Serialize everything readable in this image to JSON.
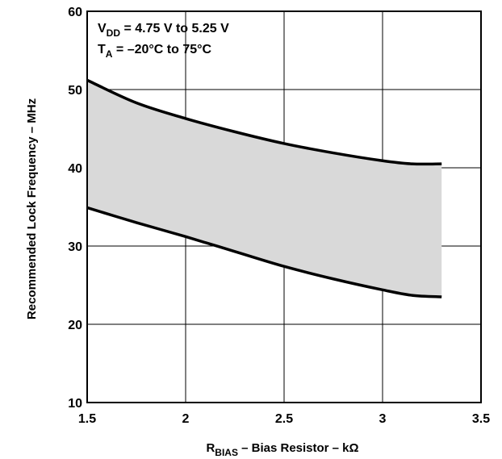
{
  "chart_data": {
    "type": "area",
    "title": "",
    "xlabel": {
      "main": "R",
      "sub": "BIAS",
      "rest": " – Bias Resistor – kΩ"
    },
    "ylabel": "Recommended Lock Frequency – MHz",
    "xlim": [
      1.5,
      3.5
    ],
    "ylim": [
      10,
      60
    ],
    "xticks": [
      1.5,
      2,
      2.5,
      3,
      3.5
    ],
    "yticks": [
      10,
      20,
      30,
      40,
      50,
      60
    ],
    "xtick_labels": [
      "1.5",
      "2",
      "2.5",
      "3",
      "3.5"
    ],
    "ytick_labels": [
      "10",
      "20",
      "30",
      "40",
      "50",
      "60"
    ],
    "grid": true,
    "band_fill": "#d9d9d9",
    "line_color": "#000000",
    "series": [
      {
        "role": "upper",
        "x": [
          1.5,
          1.75,
          2.0,
          2.25,
          2.5,
          2.75,
          3.0,
          3.15,
          3.3
        ],
        "y": [
          51.2,
          48.3,
          46.3,
          44.6,
          43.1,
          41.9,
          40.9,
          40.5,
          40.5
        ]
      },
      {
        "role": "lower",
        "x": [
          1.5,
          1.75,
          2.0,
          2.25,
          2.5,
          2.75,
          3.0,
          3.15,
          3.3
        ],
        "y": [
          34.9,
          33.0,
          31.2,
          29.3,
          27.4,
          25.8,
          24.4,
          23.7,
          23.5
        ]
      }
    ],
    "annotation": {
      "line1": {
        "main": "V",
        "sub": "DD",
        "rest": " = 4.75 V to 5.25 V"
      },
      "line2": {
        "main": "T",
        "sub": "A",
        "rest": " = –20°C to 75°C"
      }
    }
  }
}
